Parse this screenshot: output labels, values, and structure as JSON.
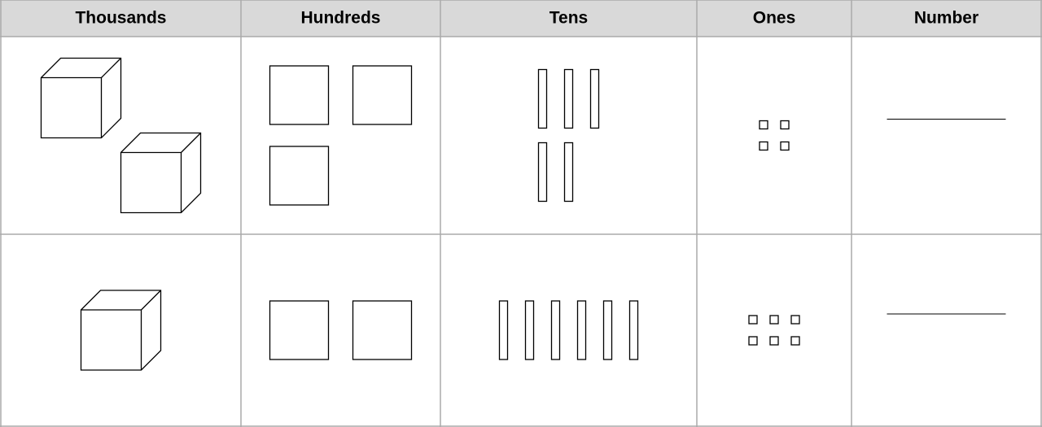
{
  "table": {
    "headers": [
      "Thousands",
      "Hundreds",
      "Tens",
      "Ones",
      "Number"
    ],
    "rows": [
      {
        "thousands": 2,
        "hundreds": 3,
        "tens": 5,
        "ones": 4
      },
      {
        "thousands": 1,
        "hundreds": 2,
        "tens": 6,
        "ones": 6
      }
    ]
  }
}
